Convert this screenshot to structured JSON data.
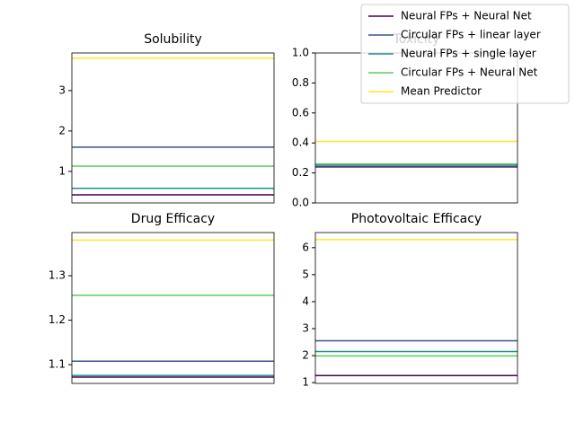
{
  "chart_data": [
    {
      "type": "hline",
      "title": "Solubility",
      "ylim": [
        0.22,
        3.93
      ],
      "yticks": [
        1,
        2,
        3
      ],
      "legend_loc": "upper right",
      "series": [
        {
          "name": "Neural FPs + Neural Net",
          "color": "#440154",
          "values": [
            0.42
          ]
        },
        {
          "name": "Circular FPs + linear layer",
          "color": "#3b528b",
          "values": [
            1.6
          ]
        },
        {
          "name": "Neural FPs + single layer",
          "color": "#21918c",
          "values": [
            0.58
          ]
        },
        {
          "name": "Circular FPs + Neural Net",
          "color": "#5ec962",
          "values": [
            1.13
          ]
        },
        {
          "name": "Mean Predictor",
          "color": "#fde725",
          "values": [
            3.8
          ]
        }
      ]
    },
    {
      "type": "hline",
      "title": "Toxicity",
      "ylim": [
        0,
        1
      ],
      "yticks": [
        {
          "value": 0,
          "label": "0.0"
        },
        0.2,
        0.4,
        0.6,
        0.8,
        {
          "value": 1,
          "label": "1.0"
        }
      ],
      "series": [
        {
          "color": "#440154",
          "values": [
            0.24
          ]
        },
        {
          "color": "#3b528b",
          "values": [
            0.245
          ]
        },
        {
          "color": "#21918c",
          "values": [
            0.255
          ]
        },
        {
          "color": "#5ec962",
          "values": [
            0.26
          ]
        },
        {
          "color": "#fde725",
          "values": [
            0.41
          ]
        }
      ]
    },
    {
      "type": "hline",
      "title": "Drug Efficacy",
      "ylim": [
        1.058,
        1.397
      ],
      "yticks": [
        1.1,
        1.2,
        1.3
      ],
      "series": [
        {
          "color": "#440154",
          "values": [
            1.072
          ]
        },
        {
          "color": "#3b528b",
          "values": [
            1.108
          ]
        },
        {
          "color": "#21918c",
          "values": [
            1.076
          ]
        },
        {
          "color": "#5ec962",
          "values": [
            1.256
          ]
        },
        {
          "color": "#fde725",
          "values": [
            1.38
          ]
        }
      ]
    },
    {
      "type": "hline",
      "title": "Photovoltaic Efficacy",
      "ylim": [
        0.97,
        6.56
      ],
      "yticks": [
        1,
        2,
        3,
        4,
        5,
        6
      ],
      "series": [
        {
          "color": "#440154",
          "values": [
            1.26
          ]
        },
        {
          "color": "#3b528b",
          "values": [
            2.55
          ]
        },
        {
          "color": "#21918c",
          "values": [
            2.15
          ]
        },
        {
          "color": "#5ec962",
          "values": [
            1.99
          ]
        },
        {
          "color": "#fde725",
          "values": [
            6.3
          ]
        }
      ]
    }
  ]
}
